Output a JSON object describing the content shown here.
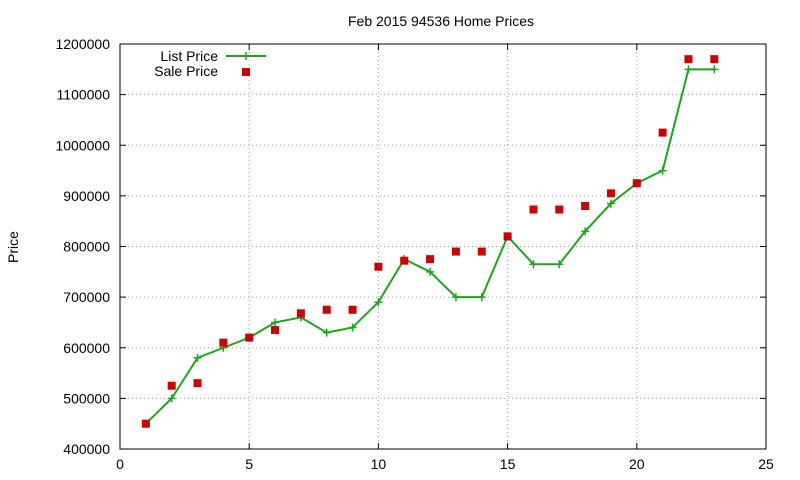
{
  "chart_data": {
    "type": "line",
    "title": "Feb 2015 94536 Home Prices",
    "xlabel": "",
    "ylabel": "Price",
    "xlim": [
      0,
      25
    ],
    "ylim": [
      400000,
      1200000
    ],
    "xticks": [
      0,
      5,
      10,
      15,
      20,
      25
    ],
    "yticks": [
      400000,
      500000,
      600000,
      700000,
      800000,
      900000,
      1000000,
      1100000,
      1200000
    ],
    "grid": true,
    "legend_position": "top-left",
    "series": [
      {
        "name": "List Price",
        "style": "line-with-plus-markers",
        "color": "#1aa61a",
        "x": [
          1,
          2,
          3,
          4,
          5,
          6,
          7,
          8,
          9,
          10,
          11,
          12,
          13,
          14,
          15,
          16,
          17,
          18,
          19,
          20,
          21,
          22,
          23
        ],
        "y": [
          450000,
          500000,
          580000,
          600000,
          620000,
          650000,
          660000,
          630000,
          640000,
          690000,
          775000,
          750000,
          700000,
          700000,
          820000,
          765000,
          765000,
          830000,
          885000,
          925000,
          950000,
          1150000,
          1150000
        ]
      },
      {
        "name": "Sale Price",
        "style": "square-markers",
        "color": "#cc0000",
        "x": [
          1,
          2,
          3,
          4,
          5,
          6,
          7,
          8,
          9,
          10,
          11,
          12,
          13,
          14,
          15,
          16,
          17,
          18,
          19,
          20,
          21,
          22,
          23
        ],
        "y": [
          450000,
          525000,
          530000,
          610000,
          620000,
          635000,
          668000,
          675000,
          675000,
          760000,
          772000,
          775000,
          790000,
          790000,
          820000,
          873000,
          873000,
          880000,
          905000,
          925000,
          1025000,
          1170000,
          1170000
        ]
      }
    ]
  }
}
